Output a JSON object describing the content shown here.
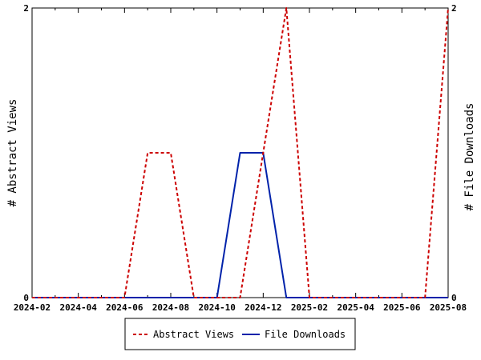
{
  "chart_data": {
    "type": "line",
    "x": [
      "2024-02",
      "2024-03",
      "2024-04",
      "2024-05",
      "2024-06",
      "2024-07",
      "2024-08",
      "2024-09",
      "2024-10",
      "2024-11",
      "2024-12",
      "2025-01",
      "2025-02",
      "2025-03",
      "2025-04",
      "2025-05",
      "2025-06",
      "2025-07",
      "2025-08"
    ],
    "xticks": [
      "2024-02",
      "2024-04",
      "2024-06",
      "2024-08",
      "2024-10",
      "2024-12",
      "2025-02",
      "2025-04",
      "2025-06",
      "2025-08"
    ],
    "series": [
      {
        "name": "Abstract Views",
        "axis": "left",
        "color": "#cc0000",
        "style": "dashed",
        "values": [
          0,
          0,
          0,
          0,
          0,
          1,
          1,
          0,
          0,
          0,
          1,
          2,
          0,
          0,
          0,
          0,
          0,
          0,
          2
        ]
      },
      {
        "name": "File Downloads",
        "axis": "right",
        "color": "#0022aa",
        "style": "solid",
        "values": [
          0,
          0,
          0,
          0,
          0,
          0,
          0,
          0,
          0,
          1,
          1,
          0,
          0,
          0,
          0,
          0,
          0,
          0,
          0
        ]
      }
    ],
    "ylabel_left": "# Abstract Views",
    "ylabel_right": "# File Downloads",
    "ylim_left": [
      0,
      2
    ],
    "ylim_right": [
      0,
      2
    ],
    "yticks_left": [
      "0",
      "2"
    ],
    "yticks_right": [
      "0",
      "2"
    ],
    "grid": false,
    "legend_position": "bottom"
  }
}
